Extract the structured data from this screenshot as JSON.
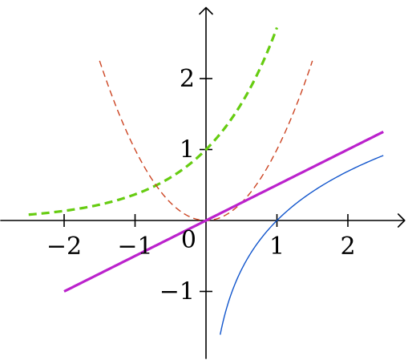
{
  "chart_data": {
    "type": "line",
    "title": "",
    "xlabel": "",
    "ylabel": "",
    "xlim": [
      -2.9,
      2.8
    ],
    "ylim": [
      -1.95,
      3.0
    ],
    "grid": false,
    "legend": "none",
    "x_ticks": [
      {
        "value": -2,
        "label": "−2"
      },
      {
        "value": -1,
        "label": "−1"
      },
      {
        "value": 1,
        "label": "1"
      },
      {
        "value": 2,
        "label": "2"
      }
    ],
    "y_ticks": [
      {
        "value": -1,
        "label": "−1"
      },
      {
        "value": 1,
        "label": "1"
      },
      {
        "value": 2,
        "label": "2"
      }
    ],
    "origin_label": "0",
    "series": [
      {
        "function": "e^x",
        "color": "#66cc11",
        "style": "dashed-thick",
        "x": [
          -2.5,
          -2.0,
          -1.5,
          -1.0,
          -0.5,
          0.0,
          0.25,
          0.5,
          0.75,
          1.0
        ],
        "y": [
          0.08,
          0.14,
          0.22,
          0.37,
          0.61,
          1.0,
          1.28,
          1.65,
          2.12,
          2.72
        ]
      },
      {
        "function": "x^2",
        "color": "#cc4422",
        "style": "dashed-thin",
        "x": [
          -1.5,
          -1.25,
          -1.0,
          -0.75,
          -0.5,
          -0.25,
          0.0,
          0.25,
          0.5,
          0.75,
          1.0,
          1.25,
          1.5
        ],
        "y": [
          2.25,
          1.5625,
          1.0,
          0.5625,
          0.25,
          0.0625,
          0.0,
          0.0625,
          0.25,
          0.5625,
          1.0,
          1.5625,
          2.25
        ]
      },
      {
        "function": "x/2",
        "color": "#bb22cc",
        "style": "solid-thick",
        "x": [
          -2.0,
          2.5
        ],
        "y": [
          -1.0,
          1.25
        ]
      },
      {
        "function": "ln x",
        "color": "#1155cc",
        "style": "solid-thin",
        "x": [
          0.2,
          0.25,
          0.3,
          0.4,
          0.5,
          0.6,
          0.7,
          0.8,
          1.0,
          1.25,
          1.5,
          1.75,
          2.0,
          2.25,
          2.5
        ],
        "y": [
          -1.609,
          -1.386,
          -1.204,
          -0.916,
          -0.693,
          -0.511,
          -0.357,
          -0.223,
          0.0,
          0.223,
          0.405,
          0.56,
          0.693,
          0.811,
          0.916
        ]
      }
    ]
  }
}
